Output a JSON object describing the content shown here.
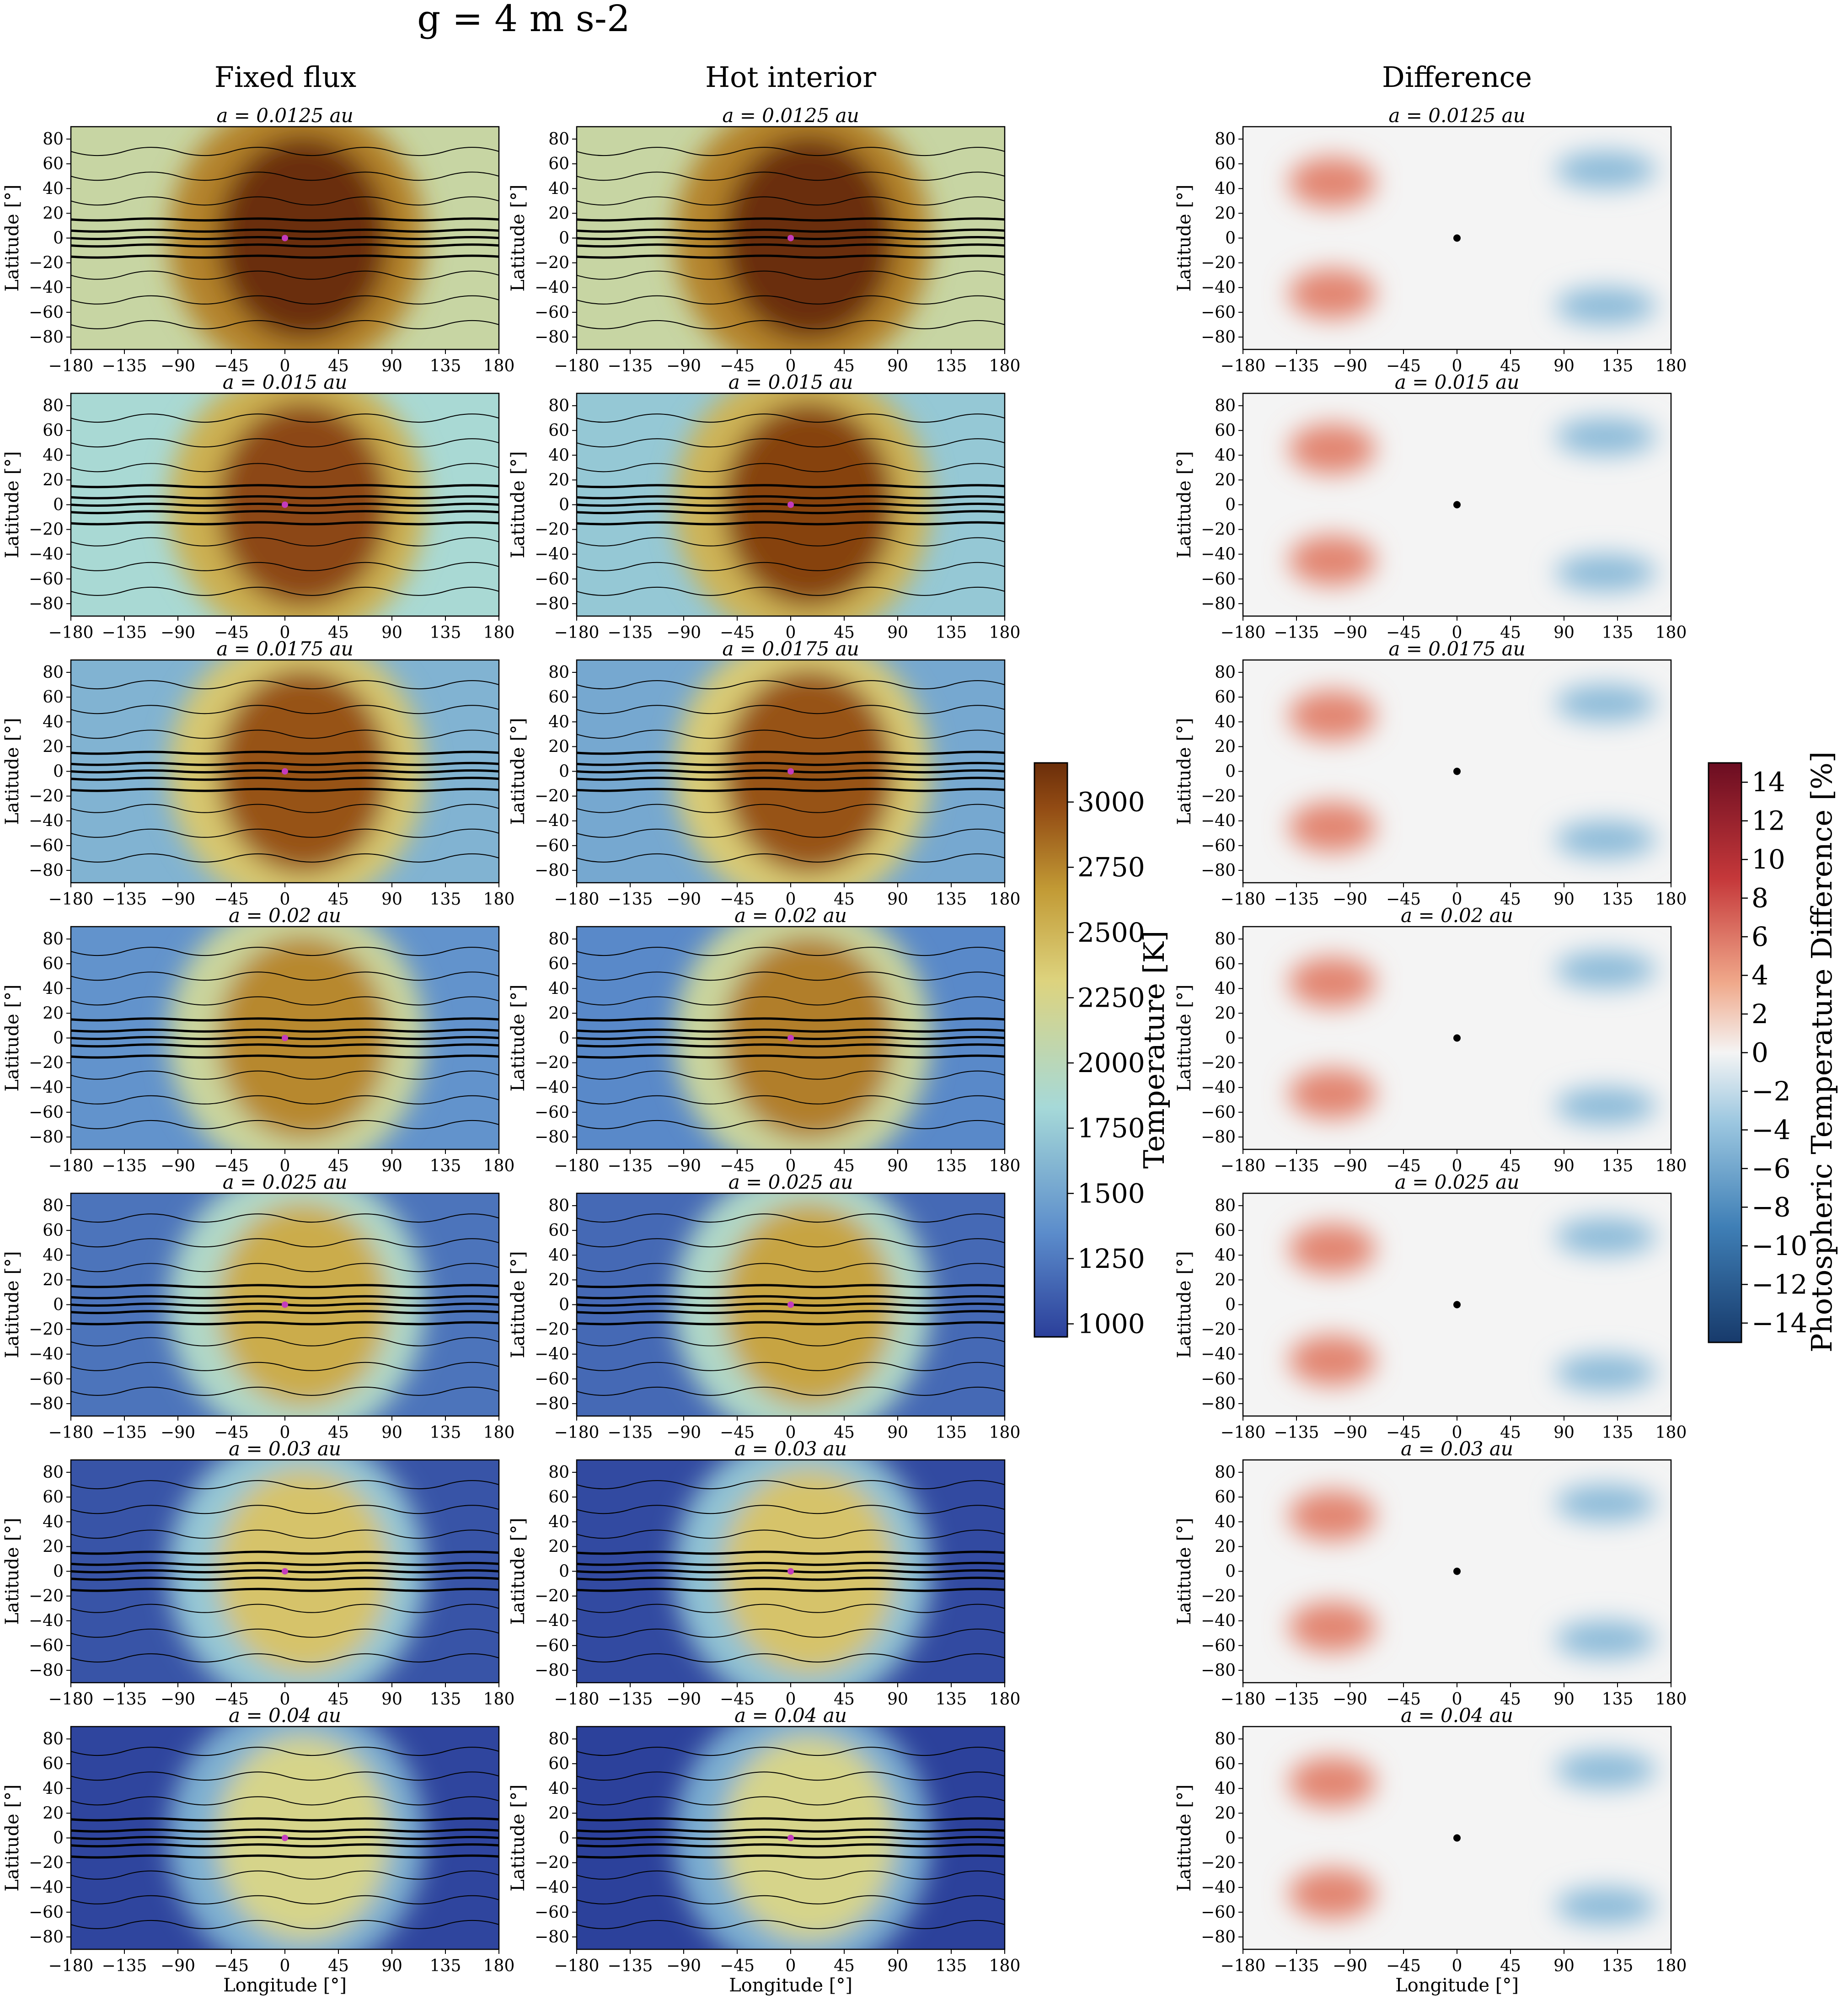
{
  "figure": {
    "suptitle": "g = 4 m s-2",
    "columns": [
      "Fixed flux",
      "Hot interior",
      "Difference"
    ]
  },
  "chart_data": {
    "type": "heatmap",
    "title": "g = 4 m s-2",
    "rows": [
      {
        "label": "a = 0.0125 au",
        "separation_au": 0.0125
      },
      {
        "label": "a = 0.015 au",
        "separation_au": 0.015
      },
      {
        "label": "a = 0.0175 au",
        "separation_au": 0.0175
      },
      {
        "label": "a = 0.02 au",
        "separation_au": 0.02
      },
      {
        "label": "a = 0.025 au",
        "separation_au": 0.025
      },
      {
        "label": "a = 0.03 au",
        "separation_au": 0.03
      },
      {
        "label": "a = 0.04 au",
        "separation_au": 0.04
      }
    ],
    "panels": {
      "fixed_flux": {
        "dayside_peak_K": [
          3150,
          2850,
          2750,
          2500,
          2300,
          2150,
          2000
        ],
        "nightside_min_K": [
          1900,
          1700,
          1500,
          1350,
          1200,
          1050,
          980
        ]
      },
      "hot_interior": {
        "dayside_peak_K": [
          3150,
          2900,
          2750,
          2550,
          2350,
          2150,
          2000
        ],
        "nightside_min_K": [
          1900,
          1600,
          1450,
          1300,
          1150,
          1000,
          960
        ]
      }
    },
    "xlabel": "Longitude [°]",
    "ylabel": "Latitude [°]",
    "xlim": [
      -180,
      180
    ],
    "ylim": [
      -90,
      90
    ],
    "xticks": [
      "−180",
      "−135",
      "−90",
      "−45",
      "0",
      "45",
      "90",
      "135",
      "180"
    ],
    "yticks": [
      "80",
      "60",
      "40",
      "20",
      "0",
      "−20",
      "−40",
      "−60",
      "−80"
    ],
    "xtick_values": [
      -180,
      -135,
      -90,
      -45,
      0,
      45,
      90,
      135,
      180
    ],
    "ytick_values": [
      80,
      60,
      40,
      20,
      0,
      -20,
      -40,
      -60,
      -80
    ],
    "temperature_colorbar": {
      "label": "Temperature [K]",
      "range": [
        950,
        3150
      ],
      "ticks": [
        "1000",
        "1250",
        "1500",
        "1750",
        "2000",
        "2250",
        "2500",
        "2750",
        "3000"
      ],
      "tick_values": [
        1000,
        1250,
        1500,
        1750,
        2000,
        2250,
        2500,
        2750,
        3000
      ],
      "colors": [
        "#2b3f9a",
        "#5b8ccb",
        "#a6d9d8",
        "#ddd37e",
        "#c29a35",
        "#934c14",
        "#6b2e0a"
      ]
    },
    "difference_colorbar": {
      "label": "Photospheric Temperature Difference [%]",
      "range": [
        -15,
        15
      ],
      "ticks": [
        "14",
        "12",
        "10",
        "8",
        "6",
        "4",
        "2",
        "0",
        "−2",
        "−4",
        "−6",
        "−8",
        "−10",
        "−12",
        "−14"
      ],
      "tick_values": [
        14,
        12,
        10,
        8,
        6,
        4,
        2,
        0,
        -2,
        -4,
        -6,
        -8,
        -10,
        -12,
        -14
      ],
      "colors": [
        "#173a6b",
        "#3f7fb6",
        "#9cc7e0",
        "#f4f4f4",
        "#f0a98b",
        "#c5383a",
        "#6b0d21"
      ]
    },
    "substellar_point": {
      "longitude": 0,
      "latitude": 0
    }
  }
}
